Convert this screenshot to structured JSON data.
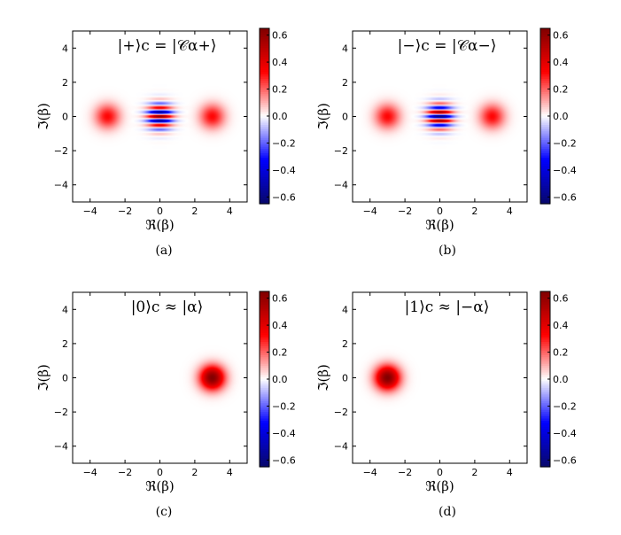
{
  "colorbar": {
    "ticks": [
      "0.6",
      "0.4",
      "0.2",
      "0.0",
      "−0.2",
      "−0.4",
      "−0.6"
    ],
    "tick_values": [
      0.6,
      0.4,
      0.2,
      0.0,
      -0.2,
      -0.4,
      -0.6
    ],
    "vmin": -0.65,
    "vmax": 0.65,
    "colors": {
      "negative": "#08086b",
      "mid": "#ffffff",
      "positive": "#7f0000"
    }
  },
  "chart_data": [
    {
      "type": "heatmap",
      "caption": "(a)",
      "title": "|+⟩c = |𝒞α+⟩",
      "xlabel": "ℜ(β)",
      "ylabel": "ℑ(β)",
      "xlim": [
        -5,
        5
      ],
      "ylim": [
        -5,
        5
      ],
      "xticks": [
        "−4",
        "−2",
        "0",
        "2",
        "4"
      ],
      "yticks": [
        "4",
        "2",
        "0",
        "−2",
        "−4"
      ],
      "features": [
        {
          "kind": "gaussian",
          "x": -3,
          "y": 0,
          "amplitude": 0.32
        },
        {
          "kind": "gaussian",
          "x": 3,
          "y": 0,
          "amplitude": 0.32
        },
        {
          "kind": "interference",
          "x": 0,
          "y": 0,
          "amplitude": 0.64,
          "phase": "cos"
        }
      ]
    },
    {
      "type": "heatmap",
      "caption": "(b)",
      "title": "|−⟩c = |𝒞α−⟩",
      "xlabel": "ℜ(β)",
      "ylabel": "ℑ(β)",
      "xlim": [
        -5,
        5
      ],
      "ylim": [
        -5,
        5
      ],
      "xticks": [
        "−4",
        "−2",
        "0",
        "2",
        "4"
      ],
      "yticks": [
        "4",
        "2",
        "0",
        "−2",
        "−4"
      ],
      "features": [
        {
          "kind": "gaussian",
          "x": -3,
          "y": 0,
          "amplitude": 0.32
        },
        {
          "kind": "gaussian",
          "x": 3,
          "y": 0,
          "amplitude": 0.32
        },
        {
          "kind": "interference",
          "x": 0,
          "y": 0,
          "amplitude": 0.64,
          "phase": "sin"
        }
      ]
    },
    {
      "type": "heatmap",
      "caption": "(c)",
      "title": "|0⟩c ≈ |α⟩",
      "xlabel": "ℜ(β)",
      "ylabel": "ℑ(β)",
      "xlim": [
        -5,
        5
      ],
      "ylim": [
        -5,
        5
      ],
      "xticks": [
        "−4",
        "−2",
        "0",
        "2",
        "4"
      ],
      "yticks": [
        "4",
        "2",
        "0",
        "−2",
        "−4"
      ],
      "features": [
        {
          "kind": "gaussian",
          "x": 3,
          "y": 0,
          "amplitude": 0.64
        }
      ]
    },
    {
      "type": "heatmap",
      "caption": "(d)",
      "title": "|1⟩c ≈ |−α⟩",
      "xlabel": "ℜ(β)",
      "ylabel": "ℑ(β)",
      "xlim": [
        -5,
        5
      ],
      "ylim": [
        -5,
        5
      ],
      "xticks": [
        "−4",
        "−2",
        "0",
        "2",
        "4"
      ],
      "yticks": [
        "4",
        "2",
        "0",
        "−2",
        "−4"
      ],
      "features": [
        {
          "kind": "gaussian",
          "x": -3,
          "y": 0,
          "amplitude": 0.64
        }
      ]
    }
  ]
}
